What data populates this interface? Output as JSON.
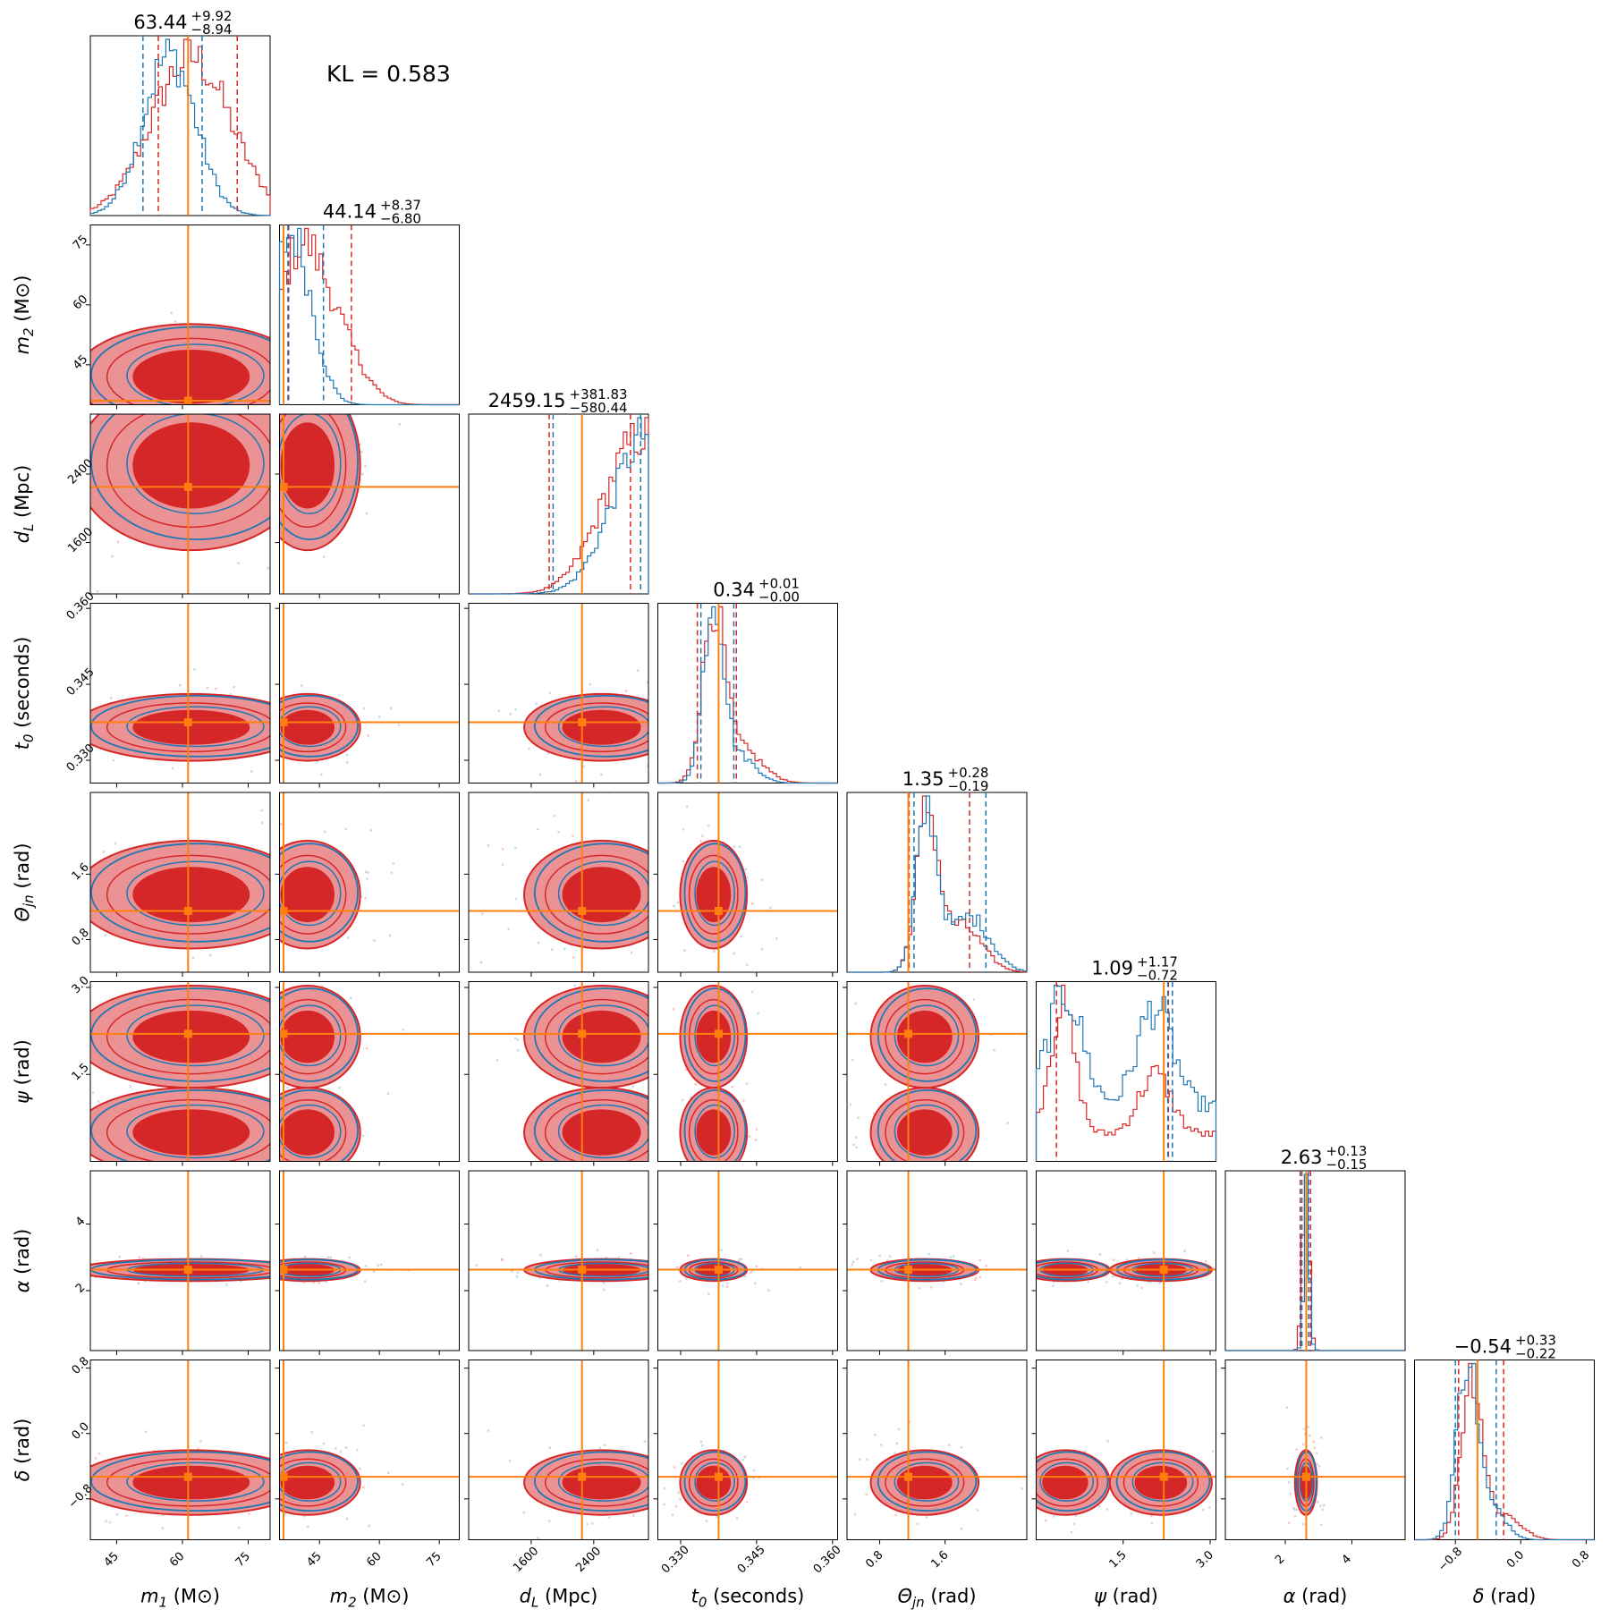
{
  "chart_data": {
    "type": "corner",
    "annotation": "KL = 0.583",
    "colors": {
      "red": "#d62728",
      "blue": "#1f77b4",
      "truth": "#ff7f0e",
      "red_light": "#eb9394"
    },
    "series": [
      {
        "color": "red"
      },
      {
        "color": "blue"
      }
    ],
    "params": [
      {
        "key": "m1",
        "label_main": "m",
        "label_sub": "1",
        "label_unit": " (M⊙)",
        "truth": 61.3,
        "range": [
          39,
          80
        ],
        "ticks": [
          "45",
          "60",
          "75"
        ],
        "tick_values": [
          45,
          60,
          75
        ],
        "title": {
          "value": "63.44",
          "plus": "+9.92",
          "minus": "−8.94"
        },
        "q_red": [
          54.5,
          72.5
        ],
        "q_blue": [
          51.0,
          64.5
        ]
      },
      {
        "key": "m2",
        "label_main": "m",
        "label_sub": "2",
        "label_unit": " (M⊙)",
        "truth": 36.0,
        "range": [
          35,
          80
        ],
        "ticks": [
          "45",
          "60",
          "75"
        ],
        "tick_values": [
          45,
          60,
          75
        ],
        "title": {
          "value": "44.14",
          "plus": "+8.37",
          "minus": "−6.80"
        },
        "q_red": [
          37.3,
          53.0
        ],
        "q_blue": [
          37.1,
          46.0
        ]
      },
      {
        "key": "dL",
        "label_main": "d",
        "label_sub": "L",
        "label_unit": " (Mpc)",
        "truth": 2250,
        "range": [
          800,
          3100
        ],
        "ticks": [
          "1600",
          "2400"
        ],
        "tick_values": [
          1600,
          2400
        ],
        "ylim": [
          1000,
          3100
        ],
        "yticks": [
          "1600",
          "2400"
        ],
        "title": {
          "value": "2459.15",
          "plus": "+381.83",
          "minus": "−580.44"
        },
        "q_red": [
          1830,
          2870
        ],
        "q_blue": [
          1880,
          3000
        ]
      },
      {
        "key": "t0",
        "label_main": "t",
        "label_sub": "0",
        "label_unit": " (seconds)",
        "truth": 0.3375,
        "range": [
          0.3255,
          0.361
        ],
        "ticks": [
          "0.330",
          "0.345",
          "0.360"
        ],
        "tick_values": [
          0.33,
          0.345,
          0.36
        ],
        "title": {
          "value": "0.34",
          "plus": "+0.01",
          "minus": "−0.00"
        },
        "q_red": [
          0.3333,
          0.341
        ],
        "q_blue": [
          0.334,
          0.3405
        ]
      },
      {
        "key": "thetajn",
        "label_main": "Θ",
        "label_sub": "jn",
        "label_unit": " (rad)",
        "truth": 1.15,
        "range": [
          0.4,
          2.6
        ],
        "ticks": [
          "0.8",
          "1.6"
        ],
        "tick_values": [
          0.8,
          1.6
        ],
        "title": {
          "value": "1.35",
          "plus": "+0.28",
          "minus": "−0.19"
        },
        "q_red": [
          1.16,
          1.9
        ],
        "q_blue": [
          1.22,
          2.1
        ]
      },
      {
        "key": "psi",
        "label_main": "ψ",
        "label_sub": "",
        "label_unit": " (rad)",
        "truth": 2.2,
        "range": [
          0.0,
          3.1
        ],
        "ticks": [
          "1.5",
          "3.0"
        ],
        "tick_values": [
          1.5,
          3.0
        ],
        "title": {
          "value": "1.09",
          "plus": "+1.17",
          "minus": "−0.72"
        },
        "q_red": [
          0.35,
          2.28
        ],
        "q_blue": [
          2.27,
          2.35
        ]
      },
      {
        "key": "alpha",
        "label_main": "α",
        "label_sub": "",
        "label_unit": " (rad)",
        "truth": 2.63,
        "range": [
          0.2,
          5.6
        ],
        "ticks": [
          "2",
          "4"
        ],
        "tick_values": [
          2,
          4
        ],
        "title": {
          "value": "2.63",
          "plus": "+0.13",
          "minus": "−0.15"
        },
        "q_red": [
          2.45,
          2.76
        ],
        "q_blue": [
          2.5,
          2.7
        ]
      },
      {
        "key": "delta",
        "label_main": "δ",
        "label_sub": "",
        "label_unit": " (rad)",
        "truth": -0.53,
        "range": [
          -1.3,
          0.9
        ],
        "ticks": [
          "−0.8",
          "0.0",
          "0.8"
        ],
        "tick_values": [
          -0.8,
          0.0,
          0.8
        ],
        "title": {
          "value": "−0.54",
          "plus": "+0.33",
          "minus": "−0.22"
        },
        "q_red": [
          -0.76,
          -0.21
        ],
        "q_blue": [
          -0.8,
          -0.3
        ]
      }
    ]
  }
}
